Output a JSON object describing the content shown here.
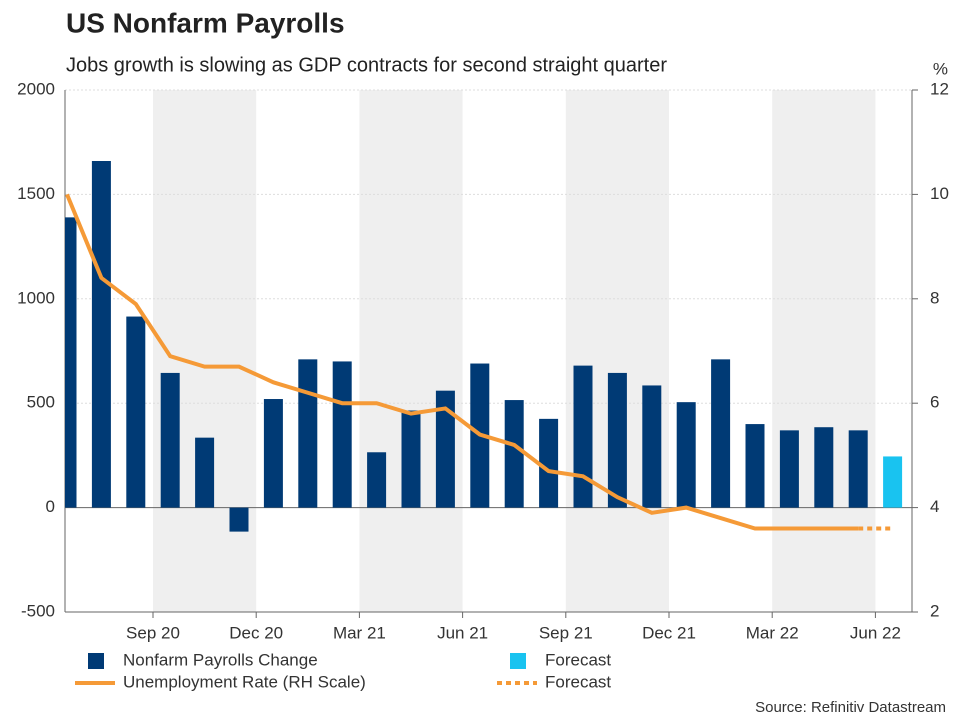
{
  "chart_data": {
    "type": "bar-line",
    "title": "US Nonfarm Payrolls",
    "subtitle": "Jobs growth is slowing as GDP contracts for second straight quarter",
    "y2label": "%",
    "source": "Source: Refinitiv Datastream",
    "categories": [
      null,
      null,
      "Sep 20",
      null,
      null,
      "Dec 20",
      null,
      null,
      "Mar 21",
      null,
      null,
      "Jun 21",
      null,
      null,
      "Sep 21",
      null,
      null,
      "Dec 21",
      null,
      null,
      "Mar 22",
      null,
      null,
      "Jun 22",
      null
    ],
    "ylim": [
      -500,
      2000
    ],
    "yticks": [
      -500,
      0,
      500,
      1000,
      1500,
      2000
    ],
    "y2lim": [
      2,
      12
    ],
    "y2ticks": [
      2,
      4,
      6,
      8,
      10,
      12
    ],
    "grid": true,
    "series": [
      {
        "name": "Nonfarm Payrolls Change",
        "kind": "bar",
        "color": "#003a75",
        "values": [
          1390,
          1660,
          915,
          645,
          335,
          -115,
          520,
          710,
          700,
          265,
          465,
          560,
          690,
          515,
          425,
          680,
          645,
          585,
          505,
          710,
          400,
          370,
          385,
          370,
          null
        ]
      },
      {
        "name": "Forecast",
        "kind": "bar",
        "color": "#19c3f0",
        "values": [
          null,
          null,
          null,
          null,
          null,
          null,
          null,
          null,
          null,
          null,
          null,
          null,
          null,
          null,
          null,
          null,
          null,
          null,
          null,
          null,
          null,
          null,
          null,
          null,
          245
        ]
      },
      {
        "name": "Unemployment Rate (RH Scale)",
        "kind": "line",
        "axis": "y2",
        "color": "#f59a37",
        "values": [
          10.0,
          8.4,
          7.9,
          6.9,
          6.7,
          6.7,
          6.4,
          6.2,
          6.0,
          6.0,
          5.8,
          5.9,
          5.4,
          5.2,
          4.7,
          4.6,
          4.2,
          3.9,
          4.0,
          3.8,
          3.6,
          3.6,
          3.6,
          3.6,
          null
        ]
      },
      {
        "name": "Forecast",
        "kind": "line",
        "dashed": true,
        "axis": "y2",
        "color": "#f59a37",
        "values": [
          null,
          null,
          null,
          null,
          null,
          null,
          null,
          null,
          null,
          null,
          null,
          null,
          null,
          null,
          null,
          null,
          null,
          null,
          null,
          null,
          null,
          null,
          null,
          3.6,
          3.6
        ]
      }
    ]
  }
}
